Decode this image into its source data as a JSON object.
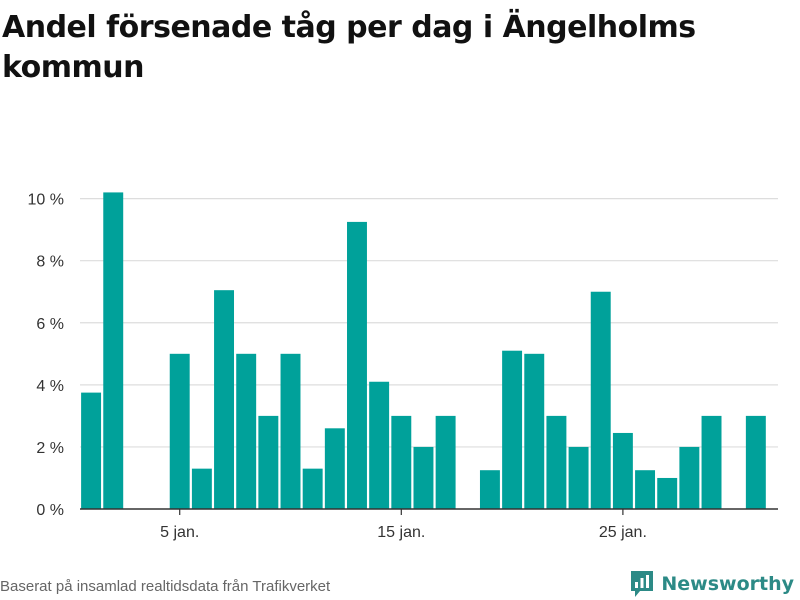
{
  "title": "Andel försenade tåg per dag i Ängelholms kommun",
  "footer": {
    "source": "Baserat på insamlad realtidsdata från Trafikverket",
    "brand": "Newsworthy"
  },
  "colors": {
    "bar": "#00a19a",
    "grid": "#dddddd",
    "axis": "#333333",
    "brand": "#2c8a86"
  },
  "chart_data": {
    "type": "bar",
    "x": [
      1,
      2,
      3,
      4,
      5,
      6,
      7,
      8,
      9,
      10,
      11,
      12,
      13,
      14,
      15,
      16,
      17,
      18,
      19,
      20,
      21,
      22,
      23,
      24,
      25,
      26,
      27,
      28,
      29,
      30,
      31
    ],
    "values": [
      3.75,
      10.2,
      null,
      null,
      5.0,
      1.3,
      7.05,
      5.0,
      3.0,
      5.0,
      1.3,
      2.6,
      9.25,
      4.1,
      3.0,
      2.0,
      3.0,
      null,
      1.25,
      5.1,
      5.0,
      3.0,
      2.0,
      7.0,
      2.45,
      1.25,
      1.0,
      2.0,
      3.0,
      null,
      3.0
    ],
    "xticks": [
      {
        "x": 5,
        "label": "5 jan."
      },
      {
        "x": 15,
        "label": "15 jan."
      },
      {
        "x": 25,
        "label": "25 jan."
      }
    ],
    "yticks": [
      {
        "v": 0,
        "label": "0 %"
      },
      {
        "v": 2,
        "label": "2 %"
      },
      {
        "v": 4,
        "label": "4 %"
      },
      {
        "v": 6,
        "label": "6 %"
      },
      {
        "v": 8,
        "label": "8 %"
      },
      {
        "v": 10,
        "label": "10 %"
      }
    ],
    "ylim": [
      0,
      10.6
    ],
    "xlim": [
      0.5,
      32.0
    ],
    "grid": true,
    "legend": "none"
  }
}
